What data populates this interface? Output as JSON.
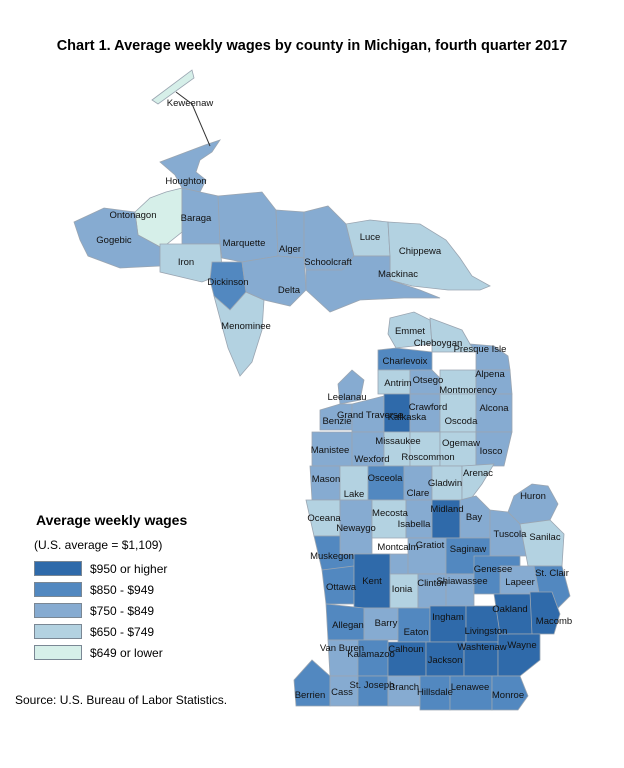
{
  "title": "Chart 1. Average weekly wages by county in Michigan, fourth quarter 2017",
  "legend": {
    "title": "Average weekly wages",
    "subtitle": "(U.S. average = $1,109)",
    "items": [
      {
        "label": "$950 or higher",
        "color": "#2f6aaa"
      },
      {
        "label": "$850 - $949",
        "color": "#5288c0"
      },
      {
        "label": "$750 - $849",
        "color": "#86abd1"
      },
      {
        "label": "$650 - $749",
        "color": "#b3d2e1"
      },
      {
        "label": "$649 or lower",
        "color": "#d6efe9"
      }
    ]
  },
  "source": "Source: U.S. Bureau of Labor Statistics.",
  "counties": [
    {
      "name": "Keweenaw",
      "class": "$649 or lower"
    },
    {
      "name": "Houghton",
      "class": "$750 - $849"
    },
    {
      "name": "Ontonagon",
      "class": "$649 or lower"
    },
    {
      "name": "Baraga",
      "class": "$750 - $849"
    },
    {
      "name": "Gogebic",
      "class": "$750 - $849"
    },
    {
      "name": "Iron",
      "class": "$650 - $749"
    },
    {
      "name": "Marquette",
      "class": "$750 - $849"
    },
    {
      "name": "Dickinson",
      "class": "$850 - $949"
    },
    {
      "name": "Menominee",
      "class": "$650 - $749"
    },
    {
      "name": "Alger",
      "class": "$750 - $849"
    },
    {
      "name": "Delta",
      "class": "$750 - $849"
    },
    {
      "name": "Schoolcraft",
      "class": "$750 - $849"
    },
    {
      "name": "Luce",
      "class": "$650 - $749"
    },
    {
      "name": "Chippewa",
      "class": "$650 - $749"
    },
    {
      "name": "Mackinac",
      "class": "$750 - $849"
    },
    {
      "name": "Emmet",
      "class": "$650 - $749"
    },
    {
      "name": "Cheboygan",
      "class": "$650 - $749"
    },
    {
      "name": "Presque Isle",
      "class": "$750 - $849"
    },
    {
      "name": "Charlevoix",
      "class": "$850 - $949"
    },
    {
      "name": "Antrim",
      "class": "$650 - $749"
    },
    {
      "name": "Otsego",
      "class": "$750 - $849"
    },
    {
      "name": "Montmorency",
      "class": "$650 - $749"
    },
    {
      "name": "Alpena",
      "class": "$750 - $849"
    },
    {
      "name": "Leelanau",
      "class": "$750 - $849"
    },
    {
      "name": "Benzie",
      "class": "$750 - $849"
    },
    {
      "name": "Grand Traverse",
      "class": "$750 - $849"
    },
    {
      "name": "Kalkaska",
      "class": "$950 or higher"
    },
    {
      "name": "Crawford",
      "class": "$750 - $849"
    },
    {
      "name": "Oscoda",
      "class": "$650 - $749"
    },
    {
      "name": "Alcona",
      "class": "$750 - $849"
    },
    {
      "name": "Manistee",
      "class": "$750 - $849"
    },
    {
      "name": "Wexford",
      "class": "$750 - $849"
    },
    {
      "name": "Missaukee",
      "class": "$650 - $749"
    },
    {
      "name": "Roscommon",
      "class": "$650 - $749"
    },
    {
      "name": "Ogemaw",
      "class": "$650 - $749"
    },
    {
      "name": "Iosco",
      "class": "$750 - $849"
    },
    {
      "name": "Mason",
      "class": "$750 - $849"
    },
    {
      "name": "Lake",
      "class": "$650 - $749"
    },
    {
      "name": "Osceola",
      "class": "$850 - $949"
    },
    {
      "name": "Clare",
      "class": "$750 - $849"
    },
    {
      "name": "Gladwin",
      "class": "$650 - $749"
    },
    {
      "name": "Arenac",
      "class": "$650 - $749"
    },
    {
      "name": "Oceana",
      "class": "$650 - $749"
    },
    {
      "name": "Newaygo",
      "class": "$750 - $849"
    },
    {
      "name": "Mecosta",
      "class": "$650 - $749"
    },
    {
      "name": "Isabella",
      "class": "$750 - $849"
    },
    {
      "name": "Midland",
      "class": "$950 or higher"
    },
    {
      "name": "Bay",
      "class": "$750 - $849"
    },
    {
      "name": "Huron",
      "class": "$750 - $849"
    },
    {
      "name": "Tuscola",
      "class": "$750 - $849"
    },
    {
      "name": "Sanilac",
      "class": "$650 - $749"
    },
    {
      "name": "Muskegon",
      "class": "$850 - $949"
    },
    {
      "name": "Montcalm",
      "class": "$750 - $849"
    },
    {
      "name": "Gratiot",
      "class": "$750 - $849"
    },
    {
      "name": "Saginaw",
      "class": "$850 - $949"
    },
    {
      "name": "Ottawa",
      "class": "$850 - $949"
    },
    {
      "name": "Kent",
      "class": "$950 or higher"
    },
    {
      "name": "Ionia",
      "class": "$650 - $749"
    },
    {
      "name": "Clinton",
      "class": "$750 - $849"
    },
    {
      "name": "Shiawassee",
      "class": "$750 - $849"
    },
    {
      "name": "Genesee",
      "class": "$850 - $949"
    },
    {
      "name": "Lapeer",
      "class": "$750 - $849"
    },
    {
      "name": "St. Clair",
      "class": "$850 - $949"
    },
    {
      "name": "Allegan",
      "class": "$850 - $949"
    },
    {
      "name": "Barry",
      "class": "$750 - $849"
    },
    {
      "name": "Eaton",
      "class": "$850 - $949"
    },
    {
      "name": "Ingham",
      "class": "$950 or higher"
    },
    {
      "name": "Livingston",
      "class": "$950 or higher"
    },
    {
      "name": "Oakland",
      "class": "$950 or higher"
    },
    {
      "name": "Macomb",
      "class": "$950 or higher"
    },
    {
      "name": "Van Buren",
      "class": "$750 - $849"
    },
    {
      "name": "Kalamazoo",
      "class": "$850 - $949"
    },
    {
      "name": "Calhoun",
      "class": "$950 or higher"
    },
    {
      "name": "Jackson",
      "class": "$950 or higher"
    },
    {
      "name": "Washtenaw",
      "class": "$950 or higher"
    },
    {
      "name": "Wayne",
      "class": "$950 or higher"
    },
    {
      "name": "Berrien",
      "class": "$850 - $949"
    },
    {
      "name": "Cass",
      "class": "$750 - $849"
    },
    {
      "name": "St. Joseph",
      "class": "$850 - $949"
    },
    {
      "name": "Branch",
      "class": "$750 - $849"
    },
    {
      "name": "Hillsdale",
      "class": "$850 - $949"
    },
    {
      "name": "Lenawee",
      "class": "$850 - $949"
    },
    {
      "name": "Monroe",
      "class": "$850 - $949"
    }
  ]
}
